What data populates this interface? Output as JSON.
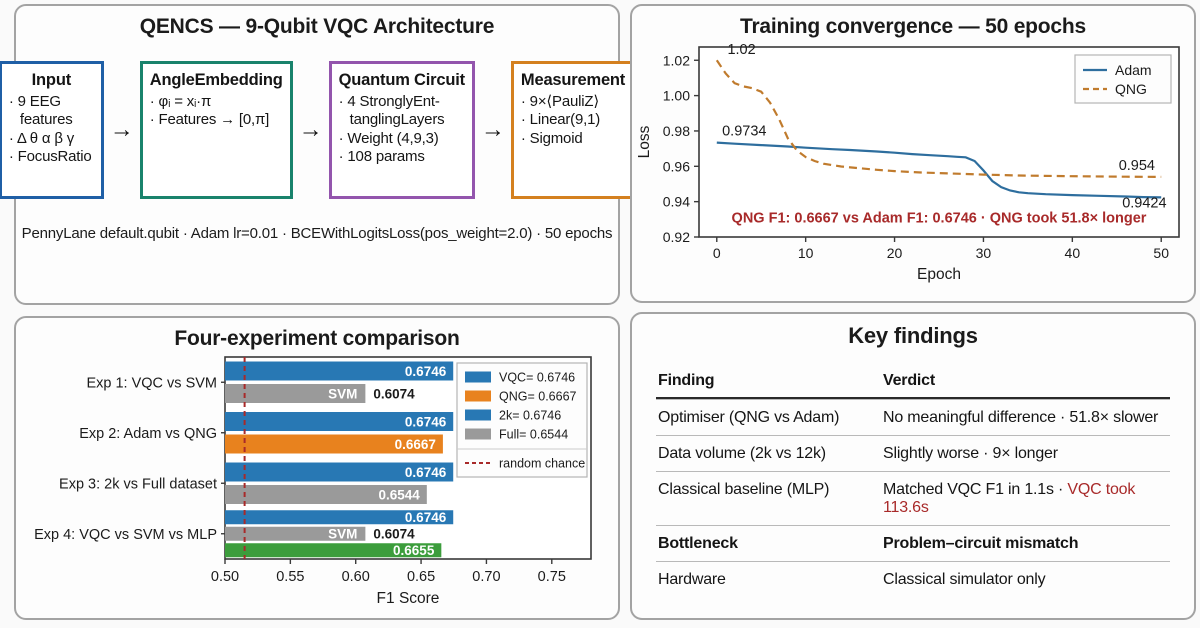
{
  "architecture": {
    "title": "QENCS — 9-Qubit VQC Architecture",
    "footer": "PennyLane default.qubit · Adam lr=0.01 · BCEWithLogitsLoss(pos_weight=2.0) · 50 epochs",
    "arrow": "→",
    "boxes": [
      {
        "name": "input",
        "title": "Input",
        "color": "#1f5fa6",
        "bullets": [
          "· 9 EEG\nfeatures",
          "· Δ θ α β γ",
          "· FocusRatio"
        ]
      },
      {
        "name": "angle-embedding",
        "title": "AngleEmbedding",
        "color": "#19836c",
        "bullets": [
          "· φᵢ = xᵢ·π",
          "· Features → [0,π]"
        ]
      },
      {
        "name": "quantum-circuit",
        "title": "Quantum Circuit",
        "color": "#9355ad",
        "bullets": [
          "· 4 StronglyEnt-\ntanglingLayers",
          "· Weight (4,9,3)",
          "· 108 params"
        ]
      },
      {
        "name": "measurement",
        "title": "Measurement",
        "color": "#d4801f",
        "bullets": [
          "· 9×⟨PauliZ⟩",
          "· Linear(9,1)",
          "· Sigmoid"
        ]
      }
    ]
  },
  "chart_data": [
    {
      "type": "line",
      "title": "Training convergence — 50 epochs",
      "xlabel": "Epoch",
      "ylabel": "Loss",
      "xlim": [
        -2,
        52
      ],
      "ylim": [
        0.92,
        1.0275
      ],
      "xticks": [
        0,
        10,
        20,
        30,
        40,
        50
      ],
      "yticks": [
        0.92,
        0.94,
        0.96,
        0.98,
        1.0,
        1.02
      ],
      "grid": false,
      "legend_position": "top-right",
      "series": [
        {
          "name": "Adam",
          "color": "#2e6e9e",
          "dash": false,
          "points": [
            [
              0,
              0.9734
            ],
            [
              2,
              0.9728
            ],
            [
              5,
              0.972
            ],
            [
              8,
              0.9712
            ],
            [
              10,
              0.9705
            ],
            [
              13,
              0.9697
            ],
            [
              15,
              0.9692
            ],
            [
              18,
              0.9684
            ],
            [
              20,
              0.9677
            ],
            [
              22,
              0.9669
            ],
            [
              24,
              0.9663
            ],
            [
              26,
              0.9657
            ],
            [
              27,
              0.9654
            ],
            [
              28,
              0.9651
            ],
            [
              29,
              0.963
            ],
            [
              30,
              0.9577
            ],
            [
              31,
              0.9517
            ],
            [
              32,
              0.9482
            ],
            [
              33,
              0.9463
            ],
            [
              34,
              0.9453
            ],
            [
              35,
              0.9448
            ],
            [
              37,
              0.9442
            ],
            [
              40,
              0.9437
            ],
            [
              43,
              0.9433
            ],
            [
              46,
              0.9429
            ],
            [
              48,
              0.9426
            ],
            [
              50,
              0.9424
            ]
          ]
        },
        {
          "name": "QNG",
          "color": "#c07b2d",
          "dash": true,
          "points": [
            [
              0,
              1.02
            ],
            [
              1,
              1.0125
            ],
            [
              2,
              1.007
            ],
            [
              3,
              1.0052
            ],
            [
              4,
              1.0042
            ],
            [
              5,
              1.0022
            ],
            [
              6,
              0.996
            ],
            [
              7,
              0.9868
            ],
            [
              8,
              0.9758
            ],
            [
              9,
              0.969
            ],
            [
              10,
              0.9652
            ],
            [
              11,
              0.963
            ],
            [
              12,
              0.9615
            ],
            [
              14,
              0.9599
            ],
            [
              16,
              0.9589
            ],
            [
              18,
              0.958
            ],
            [
              20,
              0.9573
            ],
            [
              23,
              0.9565
            ],
            [
              26,
              0.956
            ],
            [
              30,
              0.9553
            ],
            [
              34,
              0.9548
            ],
            [
              38,
              0.9545
            ],
            [
              42,
              0.9543
            ],
            [
              46,
              0.9541
            ],
            [
              50,
              0.954
            ]
          ]
        }
      ],
      "annotations": [
        {
          "text": "1.02",
          "x": 1.2,
          "y": 1.0235,
          "anchor": "start",
          "color": "#1b1b1b",
          "size": 14.5
        },
        {
          "text": "0.9734",
          "x": 0.6,
          "y": 0.9773,
          "anchor": "start",
          "color": "#1b1b1b",
          "size": 14.5
        },
        {
          "text": "0.954",
          "x": 49.3,
          "y": 0.9578,
          "anchor": "end",
          "color": "#1b1b1b",
          "size": 14.5
        },
        {
          "text": "0.9424",
          "x": 50.6,
          "y": 0.9368,
          "anchor": "end",
          "color": "#1b1b1b",
          "size": 14.5
        },
        {
          "text": "QNG F1: 0.6667 vs Adam F1: 0.6746 · QNG took 51.8× longer",
          "x": 25,
          "y": 0.9282,
          "anchor": "middle",
          "color": "#a82a2a",
          "size": 14.5
        }
      ]
    },
    {
      "type": "bar",
      "orientation": "horizontal",
      "title": "Four-experiment comparison",
      "xlabel": "F1 Score",
      "xlim": [
        0.5,
        0.78
      ],
      "xticks": [
        0.5,
        0.55,
        0.6,
        0.65,
        0.7,
        0.75
      ],
      "categories": [
        "Exp 1: VQC vs SVM",
        "Exp 2: Adam vs QNG",
        "Exp 3: 2k vs Full dataset",
        "Exp 4: VQC vs SVM vs MLP"
      ],
      "groups": [
        {
          "bars": [
            {
              "value": 0.6746,
              "color": "#2878b4",
              "label": "0.6746",
              "label_style": "inside"
            },
            {
              "value": 0.6074,
              "color": "#9a9a9a",
              "label": "0.6074",
              "label_style": "outside",
              "inner_label": "SVM"
            }
          ]
        },
        {
          "bars": [
            {
              "value": 0.6746,
              "color": "#2878b4",
              "label": "0.6746",
              "label_style": "inside"
            },
            {
              "value": 0.6667,
              "color": "#e8821e",
              "label": "0.6667",
              "label_style": "inside"
            }
          ]
        },
        {
          "bars": [
            {
              "value": 0.6746,
              "color": "#2878b4",
              "label": "0.6746",
              "label_style": "inside"
            },
            {
              "value": 0.6544,
              "color": "#9a9a9a",
              "label": "0.6544",
              "label_style": "inside"
            }
          ]
        },
        {
          "bars": [
            {
              "value": 0.6746,
              "color": "#2878b4",
              "label": "0.6746",
              "label_style": "inside"
            },
            {
              "value": 0.6074,
              "color": "#9a9a9a",
              "label": "0.6074",
              "label_style": "outside",
              "inner_label": "SVM"
            },
            {
              "value": 0.6655,
              "color": "#3c9d3c",
              "label": "0.6655",
              "label_style": "inside"
            }
          ]
        }
      ],
      "reference_line": {
        "value": 0.515,
        "color": "#a82a2a",
        "label": "random chance"
      },
      "legend": {
        "entries": [
          {
            "label": "VQC= 0.6746",
            "color": "#2878b4"
          },
          {
            "label": "QNG= 0.6667",
            "color": "#e8821e"
          },
          {
            "label": "2k= 0.6746",
            "color": "#2878b4"
          },
          {
            "label": "Full= 0.6544",
            "color": "#9a9a9a"
          }
        ],
        "dash_entry": {
          "label": "random chance",
          "color": "#a82a2a"
        }
      }
    }
  ],
  "findings": {
    "title": "Key findings",
    "columns": [
      "Finding",
      "Verdict"
    ],
    "rows": [
      {
        "finding": "Optimiser (QNG vs Adam)",
        "verdict": "No meaningful difference · 51.8× slower",
        "verdict_red": "",
        "bold": false
      },
      {
        "finding": "Data volume (2k vs 12k)",
        "verdict": "Slightly worse · 9× longer",
        "verdict_red": "",
        "bold": false
      },
      {
        "finding": "Classical baseline (MLP)",
        "verdict": "Matched VQC F1 in 1.1s · ",
        "verdict_red": "VQC took 113.6s",
        "bold": false
      },
      {
        "finding": "Bottleneck",
        "verdict": "Problem–circuit mismatch",
        "verdict_red": "",
        "bold": true
      },
      {
        "finding": "Hardware",
        "verdict": "Classical simulator only",
        "verdict_red": "",
        "bold": false
      }
    ]
  }
}
